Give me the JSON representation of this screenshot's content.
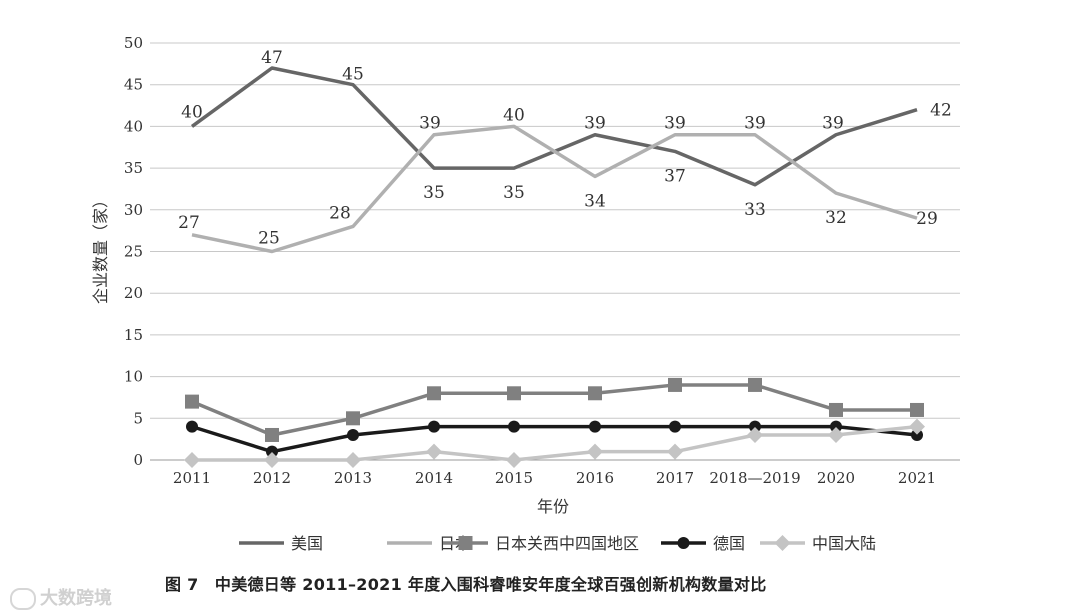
{
  "chart_data": {
    "type": "line",
    "categories": [
      "2011",
      "2012",
      "2013",
      "2014",
      "2015",
      "2016",
      "2017",
      "2018—2019",
      "2020",
      "2021"
    ],
    "ylabel": "企业数量（家）",
    "xlabel": "年份",
    "ylim": [
      0,
      50
    ],
    "yticks": [
      "0",
      "5",
      "10",
      "15",
      "20",
      "25",
      "30",
      "35",
      "40",
      "45",
      "50"
    ],
    "grid": true,
    "legend_position": "bottom",
    "series": [
      {
        "name": "美国",
        "color": "#666666",
        "marker": "none",
        "values": [
          40,
          47,
          45,
          35,
          35,
          39,
          37,
          33,
          39,
          42
        ],
        "labels": [
          "40",
          "47",
          "45",
          "35",
          "35",
          "39",
          "37",
          "33",
          "39",
          "42"
        ]
      },
      {
        "name": "日本",
        "color": "#b0b0b0",
        "marker": "none",
        "values": [
          27,
          25,
          28,
          39,
          40,
          34,
          39,
          39,
          32,
          29
        ],
        "labels": [
          "27",
          "25",
          "28",
          "39",
          "40",
          "34",
          "39",
          "39",
          "32",
          "29"
        ]
      },
      {
        "name": "日本关西中四国地区",
        "color": "#808080",
        "marker": "square",
        "values": [
          7,
          3,
          5,
          8,
          8,
          8,
          9,
          9,
          6,
          6
        ]
      },
      {
        "name": "德国",
        "color": "#1a1a1a",
        "marker": "circle",
        "values": [
          4,
          1,
          3,
          4,
          4,
          4,
          4,
          4,
          4,
          3
        ]
      },
      {
        "name": "中国大陆",
        "color": "#c4c4c4",
        "marker": "diamond",
        "values": [
          0,
          0,
          0,
          1,
          0,
          1,
          1,
          3,
          3,
          4
        ]
      }
    ]
  },
  "caption": "图 7　中美德日等 2011–2021 年度入围科睿唯安年度全球百强创新机构数量对比",
  "watermark": "大数跨境"
}
